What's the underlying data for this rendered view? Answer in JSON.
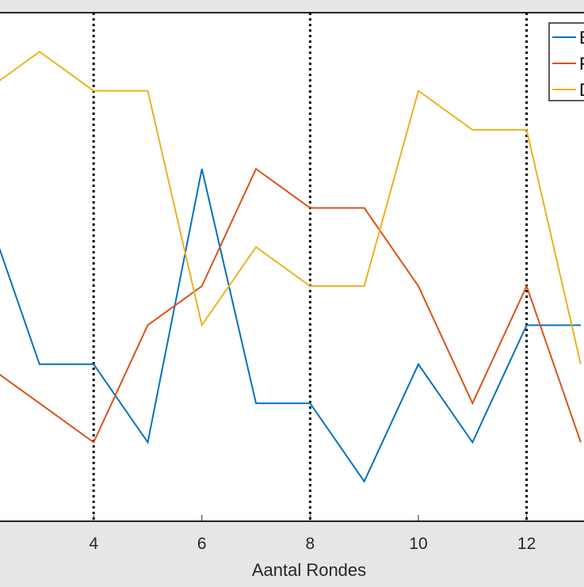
{
  "chart_data": {
    "type": "line",
    "title": "",
    "xlabel": "Aantal Rondes",
    "ylabel": "",
    "x": [
      2,
      3,
      4,
      5,
      6,
      7,
      8,
      9,
      10,
      11,
      12,
      13
    ],
    "xticks": [
      "4",
      "6",
      "8",
      "10",
      "12"
    ],
    "xtick_values": [
      4,
      6,
      8,
      10,
      12
    ],
    "xlim": [
      2.27,
      13.06
    ],
    "ylim": [
      0,
      13
    ],
    "grid": false,
    "vertical_dotted_lines": [
      4,
      8,
      12
    ],
    "legend_position": "top-right",
    "series": [
      {
        "name": "B",
        "color": "#0072bd",
        "values": [
          8,
          4,
          4,
          2,
          9,
          3,
          3,
          1,
          4,
          2,
          5,
          5
        ]
      },
      {
        "name": "R",
        "color": "#d95319",
        "values": [
          4,
          3,
          2,
          5,
          6,
          9,
          8,
          8,
          6,
          3,
          6,
          2
        ]
      },
      {
        "name": "D",
        "color": "#edb120",
        "values": [
          11,
          12,
          11,
          11,
          5,
          7,
          6,
          6,
          11,
          10,
          10,
          4
        ]
      }
    ]
  }
}
